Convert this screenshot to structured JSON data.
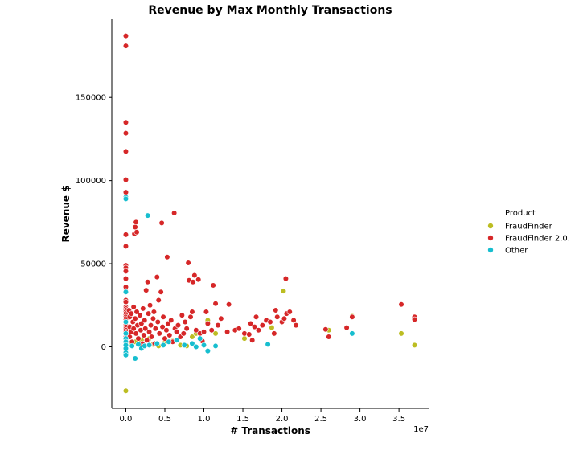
{
  "chart_data": {
    "type": "scatter",
    "title": "Revenue by Max Monthly Transactions",
    "xlabel": "# Transactions",
    "ylabel": "Revenue $",
    "x_offset_text": "1e7",
    "xlim": [
      -1800000,
      38800000
    ],
    "ylim": [
      -37000,
      197000
    ],
    "x_ticks": [
      0,
      5000000,
      10000000,
      15000000,
      20000000,
      25000000,
      30000000,
      35000000
    ],
    "x_tick_labels": [
      "0.0",
      "0.5",
      "1.0",
      "1.5",
      "2.0",
      "2.5",
      "3.0",
      "3.5"
    ],
    "y_ticks": [
      0,
      50000,
      100000,
      150000
    ],
    "y_tick_labels": [
      "0",
      "50000",
      "100000",
      "150000"
    ],
    "grid": false,
    "legend": {
      "title": "Product",
      "placement": "right"
    },
    "series": [
      {
        "name": "FraudFinder",
        "color": "#bcbd22",
        "points": [
          [
            0,
            -26500
          ],
          [
            200000,
            1000
          ],
          [
            600000,
            2000
          ],
          [
            1200000,
            3000
          ],
          [
            2000000,
            4000
          ],
          [
            3000000,
            5000
          ],
          [
            3500000,
            1500
          ],
          [
            4200000,
            500
          ],
          [
            5000000,
            2500
          ],
          [
            6000000,
            3500
          ],
          [
            7000000,
            1000
          ],
          [
            7800000,
            500
          ],
          [
            8500000,
            6000
          ],
          [
            9000000,
            8000
          ],
          [
            10500000,
            16000
          ],
          [
            11500000,
            8000
          ],
          [
            15200000,
            5000
          ],
          [
            18700000,
            11500
          ],
          [
            20200000,
            33500
          ],
          [
            26000000,
            10000
          ],
          [
            29000000,
            18500
          ],
          [
            35300000,
            8000
          ],
          [
            37000000,
            1000
          ]
        ]
      },
      {
        "name": "FraudFinder 2.0.",
        "color": "#d62728",
        "points": [
          [
            0,
            187000
          ],
          [
            0,
            181000
          ],
          [
            0,
            135000
          ],
          [
            0,
            128500
          ],
          [
            0,
            117500
          ],
          [
            0,
            100500
          ],
          [
            0,
            93000
          ],
          [
            0,
            89500
          ],
          [
            0,
            67500
          ],
          [
            0,
            60500
          ],
          [
            0,
            49000
          ],
          [
            0,
            47500
          ],
          [
            0,
            45500
          ],
          [
            0,
            41000
          ],
          [
            0,
            36000
          ],
          [
            0,
            33500
          ],
          [
            0,
            28000
          ],
          [
            0,
            27000
          ],
          [
            0,
            24000
          ],
          [
            0,
            23000
          ],
          [
            0,
            22000
          ],
          [
            0,
            21000
          ],
          [
            0,
            20000
          ],
          [
            0,
            19000
          ],
          [
            0,
            18000
          ],
          [
            0,
            17000
          ],
          [
            0,
            16000
          ],
          [
            0,
            15000
          ],
          [
            0,
            14000
          ],
          [
            0,
            13000
          ],
          [
            0,
            12000
          ],
          [
            0,
            11000
          ],
          [
            0,
            10000
          ],
          [
            0,
            9000
          ],
          [
            0,
            8000
          ],
          [
            0,
            7000
          ],
          [
            0,
            6000
          ],
          [
            0,
            5000
          ],
          [
            0,
            4000
          ],
          [
            0,
            3000
          ],
          [
            0,
            2000
          ],
          [
            0,
            1000
          ],
          [
            0,
            0
          ],
          [
            0,
            -1500
          ],
          [
            0,
            -3000
          ],
          [
            400000,
            22000
          ],
          [
            500000,
            18000
          ],
          [
            500000,
            12000
          ],
          [
            500000,
            6000
          ],
          [
            700000,
            20000
          ],
          [
            700000,
            9000
          ],
          [
            800000,
            3000
          ],
          [
            900000,
            15000
          ],
          [
            1000000,
            24000
          ],
          [
            1000000,
            11000
          ],
          [
            1100000,
            68000
          ],
          [
            1200000,
            72000
          ],
          [
            1300000,
            75000
          ],
          [
            1400000,
            69000
          ],
          [
            1200000,
            17000
          ],
          [
            1300000,
            8000
          ],
          [
            1400000,
            21000
          ],
          [
            1500000,
            13000
          ],
          [
            1600000,
            5000
          ],
          [
            1800000,
            19000
          ],
          [
            1900000,
            10000
          ],
          [
            2000000,
            14000
          ],
          [
            2100000,
            2000
          ],
          [
            2200000,
            23000
          ],
          [
            2300000,
            7000
          ],
          [
            2400000,
            16000
          ],
          [
            2500000,
            11000
          ],
          [
            2600000,
            34000
          ],
          [
            2700000,
            4000
          ],
          [
            2800000,
            39000
          ],
          [
            2900000,
            20000
          ],
          [
            3000000,
            9000
          ],
          [
            3100000,
            25000
          ],
          [
            3200000,
            13000
          ],
          [
            3300000,
            6000
          ],
          [
            3500000,
            17000
          ],
          [
            3600000,
            21000
          ],
          [
            3700000,
            2000
          ],
          [
            3800000,
            11000
          ],
          [
            4000000,
            42000
          ],
          [
            4100000,
            15000
          ],
          [
            4200000,
            28000
          ],
          [
            4300000,
            8000
          ],
          [
            4500000,
            33000
          ],
          [
            4600000,
            74500
          ],
          [
            4700000,
            12000
          ],
          [
            4800000,
            18000
          ],
          [
            5000000,
            5000
          ],
          [
            5200000,
            10000
          ],
          [
            5300000,
            54000
          ],
          [
            5400000,
            14000
          ],
          [
            5600000,
            7000
          ],
          [
            5800000,
            16000
          ],
          [
            6000000,
            3000
          ],
          [
            6200000,
            80500
          ],
          [
            6300000,
            11000
          ],
          [
            6500000,
            9000
          ],
          [
            6700000,
            13000
          ],
          [
            7000000,
            6000
          ],
          [
            7200000,
            19000
          ],
          [
            7400000,
            8000
          ],
          [
            7600000,
            15000
          ],
          [
            7800000,
            11000
          ],
          [
            8000000,
            50500
          ],
          [
            8100000,
            40000
          ],
          [
            8300000,
            18000
          ],
          [
            8500000,
            21000
          ],
          [
            8600000,
            39000
          ],
          [
            8800000,
            43000
          ],
          [
            9000000,
            10000
          ],
          [
            9300000,
            40500
          ],
          [
            9500000,
            8000
          ],
          [
            9800000,
            3500
          ],
          [
            10000000,
            9000
          ],
          [
            10300000,
            21000
          ],
          [
            10500000,
            14000
          ],
          [
            11000000,
            10000
          ],
          [
            11200000,
            37000
          ],
          [
            11500000,
            26000
          ],
          [
            11800000,
            13000
          ],
          [
            12200000,
            17000
          ],
          [
            13000000,
            9000
          ],
          [
            13200000,
            25500
          ],
          [
            14000000,
            10000
          ],
          [
            14500000,
            11000
          ],
          [
            15200000,
            8000
          ],
          [
            15800000,
            7500
          ],
          [
            16000000,
            14000
          ],
          [
            16200000,
            4000
          ],
          [
            16500000,
            12000
          ],
          [
            16700000,
            18000
          ],
          [
            17000000,
            10000
          ],
          [
            17500000,
            13000
          ],
          [
            18000000,
            16000
          ],
          [
            18500000,
            15000
          ],
          [
            19000000,
            8000
          ],
          [
            19200000,
            22000
          ],
          [
            19400000,
            18000
          ],
          [
            20000000,
            15000
          ],
          [
            20300000,
            17000
          ],
          [
            20500000,
            41000
          ],
          [
            20600000,
            20000
          ],
          [
            21000000,
            21000
          ],
          [
            21500000,
            16000
          ],
          [
            21800000,
            13000
          ],
          [
            25600000,
            10500
          ],
          [
            26000000,
            6000
          ],
          [
            28300000,
            11500
          ],
          [
            29000000,
            18000
          ],
          [
            35300000,
            25500
          ],
          [
            37000000,
            18000
          ],
          [
            37000000,
            16500
          ]
        ]
      },
      {
        "name": "Other",
        "color": "#17becf",
        "points": [
          [
            0,
            90000
          ],
          [
            0,
            89000
          ],
          [
            0,
            33000
          ],
          [
            0,
            15000
          ],
          [
            0,
            8000
          ],
          [
            0,
            5000
          ],
          [
            0,
            3000
          ],
          [
            0,
            1000
          ],
          [
            0,
            -1000
          ],
          [
            0,
            -3500
          ],
          [
            0,
            -5000
          ],
          [
            800000,
            500
          ],
          [
            1200000,
            -7000
          ],
          [
            1600000,
            1500
          ],
          [
            2000000,
            -1000
          ],
          [
            2400000,
            500
          ],
          [
            2800000,
            79000
          ],
          [
            3000000,
            1000
          ],
          [
            4000000,
            2000
          ],
          [
            4800000,
            1000
          ],
          [
            5500000,
            3000
          ],
          [
            6500000,
            4000
          ],
          [
            7500000,
            1000
          ],
          [
            8500000,
            2000
          ],
          [
            9000000,
            0
          ],
          [
            9500000,
            5000
          ],
          [
            10000000,
            1000
          ],
          [
            10500000,
            -2500
          ],
          [
            11500000,
            500
          ],
          [
            18200000,
            1500
          ],
          [
            29000000,
            8000
          ]
        ]
      }
    ]
  }
}
